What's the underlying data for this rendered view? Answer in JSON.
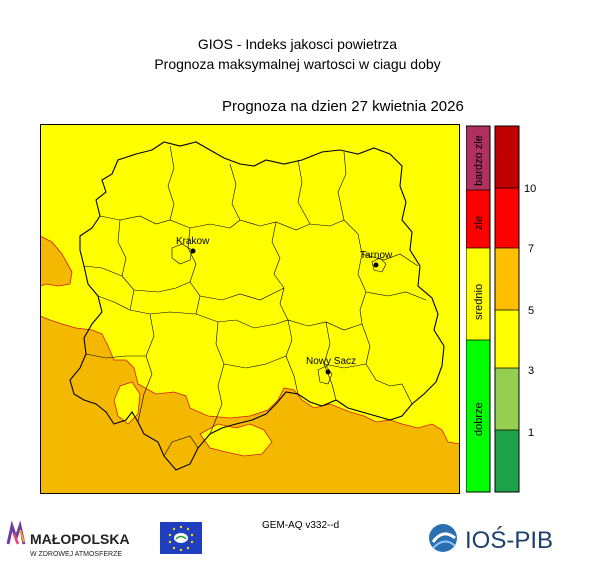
{
  "header": {
    "title_line1": "GIOS - Indeks jakosci powietrza",
    "title_line2": "Prognoza maksymalnej wartosci w ciagu doby",
    "forecast_date": "Prognoza na dzien  27 kwietnia 2026"
  },
  "map": {
    "cities": [
      {
        "name": "Krakow"
      },
      {
        "name": "Tarnow"
      },
      {
        "name": "Nowy Sacz"
      }
    ],
    "colors": {
      "background": "#ffff00",
      "elevated": "#f5b800",
      "boundary": "#000000",
      "contour": "#d11a1a"
    }
  },
  "category_scale": {
    "labels": [
      "dobrze",
      "srednio",
      "zle",
      "bardzo zle"
    ],
    "colors": [
      "#00ff00",
      "#ffff00",
      "#ff0000",
      "#b03060"
    ]
  },
  "value_scale": {
    "tick_labels": [
      "1",
      "3",
      "5",
      "7",
      "10"
    ],
    "colors": [
      "#1fa34a",
      "#94cf4f",
      "#ffff00",
      "#ffbf00",
      "#ff0000",
      "#c00000"
    ]
  },
  "footer": {
    "model": "GEM-AQ v332--d",
    "logo_malopolska_name": "MAŁOPOLSKA",
    "logo_malopolska_tagline": "W ZDROWEJ ATMOSFERZE",
    "logo_ios": "IOŚ-PIB"
  }
}
